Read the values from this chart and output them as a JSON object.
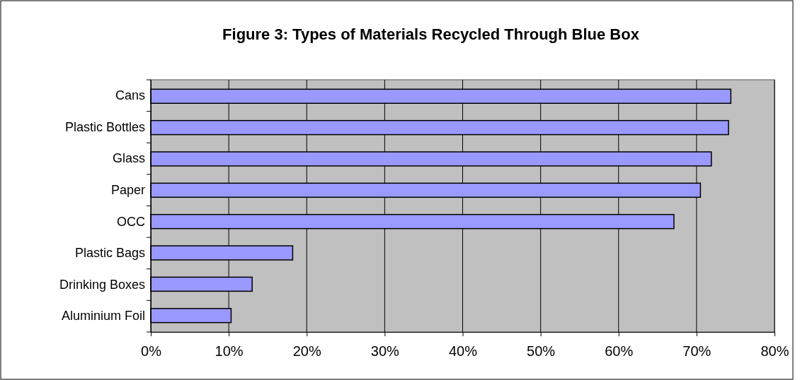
{
  "chart_data": {
    "type": "bar",
    "orientation": "horizontal",
    "title": "Figure 3: Types of Materials Recycled Through Blue Box",
    "categories": [
      "Cans",
      "Plastic Bottles",
      "Glass",
      "Paper",
      "OCC",
      "Plastic Bags",
      "Drinking Boxes",
      "Aluminium Foil"
    ],
    "values": [
      74.4,
      74.1,
      71.9,
      70.5,
      67.1,
      18.2,
      13.0,
      10.3
    ],
    "color": "#9999ff",
    "xlim": [
      0,
      80
    ],
    "xticks": [
      {
        "value": 0,
        "label": "0%"
      },
      {
        "value": 10,
        "label": "10%"
      },
      {
        "value": 20,
        "label": "20%"
      },
      {
        "value": 30,
        "label": "30%"
      },
      {
        "value": 40,
        "label": "40%"
      },
      {
        "value": 50,
        "label": "50%"
      },
      {
        "value": 60,
        "label": "60%"
      },
      {
        "value": 70,
        "label": "70%"
      },
      {
        "value": 80,
        "label": "80%"
      }
    ],
    "grid": "x"
  }
}
